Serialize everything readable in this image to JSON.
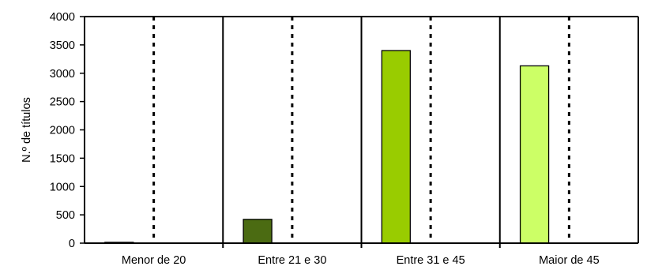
{
  "chart_data": {
    "type": "bar",
    "title": "",
    "xlabel": "",
    "ylabel": "N.º de títulos",
    "categories": [
      "Menor de 20",
      "Entre 21 e 30",
      "Entre 31 e 45",
      "Maior de 45"
    ],
    "values": [
      15,
      420,
      3400,
      3130
    ],
    "colors": [
      "#2E4A0E",
      "#4B6B12",
      "#99CC00",
      "#CCFF66"
    ],
    "ylim": [
      0,
      4000
    ],
    "yticks": [
      0,
      500,
      1000,
      1500,
      2000,
      2500,
      3000,
      3500,
      4000
    ],
    "grid": "none",
    "category_separators": "solid",
    "category_midlines": "dotted",
    "legend": "none"
  }
}
